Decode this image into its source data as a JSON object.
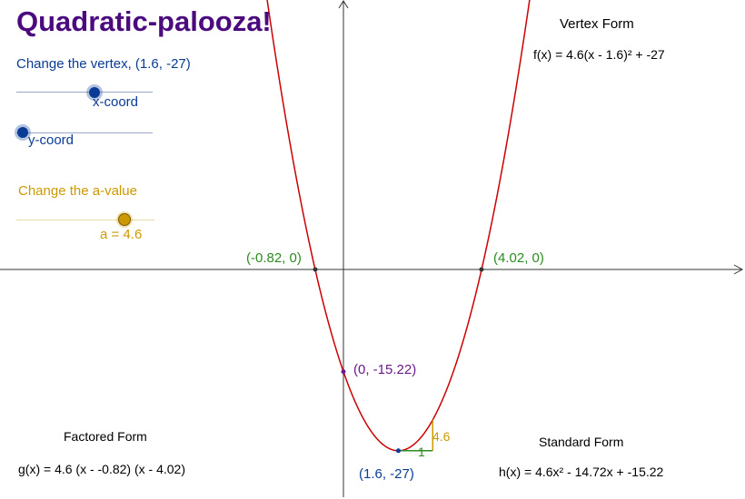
{
  "title": "Quadratic-palooza!",
  "vertex_slider": {
    "heading": "Change the vertex, (1.6, -27)",
    "x_label": "x-coord",
    "y_label": "y-coord"
  },
  "a_slider": {
    "heading": "Change the a-value",
    "value_label": "a = 4.6",
    "value": 4.6
  },
  "vertex_form": {
    "heading": "Vertex Form",
    "equation": "f(x) = 4.6(x - 1.6)² + -27"
  },
  "factored_form": {
    "heading": "Factored Form",
    "equation": "g(x) = 4.6 (x - -0.82) (x - 4.02)"
  },
  "standard_form": {
    "heading": "Standard Form",
    "equation": "h(x) = 4.6x² - 14.72x + -15.22"
  },
  "points": {
    "root_left": "(-0.82, 0)",
    "root_right": "(4.02, 0)",
    "y_intercept": "(0, -15.22)",
    "vertex": "(1.6, -27)"
  },
  "slope_triangle": {
    "run_label": "1",
    "rise_label": "4.6"
  },
  "colors": {
    "title": "#4b0a7d",
    "vertex_slider": "#0a3c96",
    "a_slider": "#cc9900",
    "curve": "#cc0000",
    "roots": "#2a8c1e",
    "intercept": "#6a1a8c"
  },
  "chart_data": {
    "type": "line",
    "series": [
      {
        "name": "f(x) = 4.6(x - 1.6)² + -27",
        "a": 4.6,
        "h": 1.6,
        "k": -27
      }
    ],
    "x_intercepts": [
      -0.82,
      4.02
    ],
    "y_intercept": -15.22,
    "vertex": [
      1.6,
      -27
    ],
    "grid": false
  }
}
